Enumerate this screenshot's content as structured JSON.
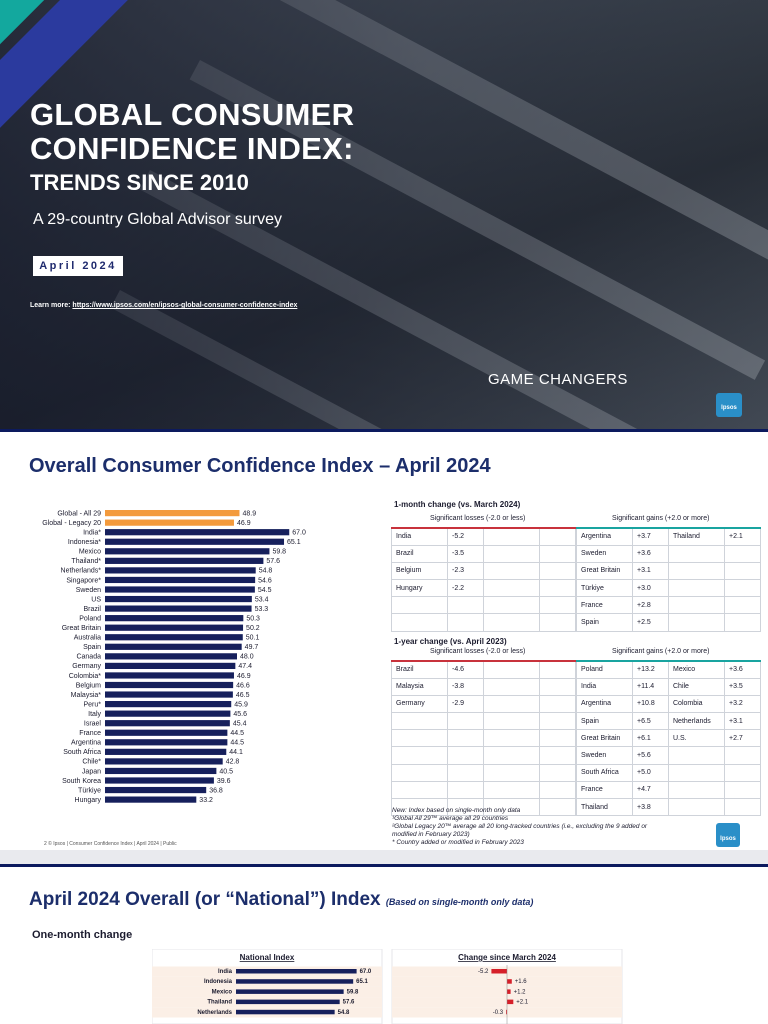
{
  "cover": {
    "title_line1": "GLOBAL CONSUMER",
    "title_line2": "CONFIDENCE INDEX:",
    "title_line3": "TRENDS SINCE 2010",
    "subtitle": "A 29-country Global Advisor survey",
    "date": "April 2024",
    "learn_more_label": "Learn more:",
    "learn_more_url": "https://www.ipsos.com/en/ipsos-global-consumer-confidence-index",
    "tagline": "GAME CHANGERS",
    "logo": "Ipsos"
  },
  "slide2": {
    "heading": "Overall Consumer Confidence Index – April 2024",
    "one_month": {
      "title": "1-month change (vs. March 2024)",
      "loss_header": "Significant losses (-2.0 or less)",
      "gain_header": "Significant gains (+2.0 or more)",
      "losses": [
        [
          "India",
          "-5.2"
        ],
        [
          "Brazil",
          "-3.5"
        ],
        [
          "Belgium",
          "-2.3"
        ],
        [
          "Hungary",
          "-2.2"
        ]
      ],
      "gains_col1": [
        [
          "Argentina",
          "+3.7"
        ],
        [
          "Sweden",
          "+3.6"
        ],
        [
          "Great Britain",
          "+3.1"
        ],
        [
          "Türkiye",
          "+3.0"
        ],
        [
          "France",
          "+2.8"
        ],
        [
          "Spain",
          "+2.5"
        ]
      ],
      "gains_col2": [
        [
          "Thailand",
          "+2.1"
        ]
      ]
    },
    "one_year": {
      "title": "1-year change (vs. April 2023)",
      "loss_header": "Significant losses (-2.0 or less)",
      "gain_header": "Significant gains (+2.0 or more)",
      "losses": [
        [
          "Brazil",
          "-4.6"
        ],
        [
          "Malaysia",
          "-3.8"
        ],
        [
          "Germany",
          "-2.9"
        ]
      ],
      "gains_col1": [
        [
          "Poland",
          "+13.2"
        ],
        [
          "India",
          "+11.4"
        ],
        [
          "Argentina",
          "+10.8"
        ],
        [
          "Spain",
          "+6.5"
        ],
        [
          "Great Britain",
          "+6.1"
        ],
        [
          "Sweden",
          "+5.6"
        ],
        [
          "South Africa",
          "+5.0"
        ],
        [
          "France",
          "+4.7"
        ],
        [
          "Thailand",
          "+3.8"
        ]
      ],
      "gains_col2": [
        [
          "Mexico",
          "+3.6"
        ],
        [
          "Chile",
          "+3.5"
        ],
        [
          "Colombia",
          "+3.2"
        ],
        [
          "Netherlands",
          "+3.1"
        ],
        [
          "U.S.",
          "+2.7"
        ]
      ]
    },
    "notes": [
      "New: Index based on single-month only data",
      "¹Global All 29™ average all 29 countries",
      "²Global Legacy 20™ average all 20 long-tracked countries (i.e., excluding the 9 added or",
      "modified in February 2023)",
      "* Country added or modified in February 2023"
    ],
    "footer": "2   © Ipsos | Consumer Confidence Index | April 2024 | Public",
    "logo": "Ipsos"
  },
  "chart_data": [
    {
      "type": "bar",
      "orientation": "horizontal",
      "categories": [
        "Global - All 29",
        "Global - Legacy 20",
        "India*",
        "Indonesia*",
        "Mexico",
        "Thailand*",
        "Netherlands*",
        "Singapore*",
        "Sweden",
        "US",
        "Brazil",
        "Poland",
        "Great Britain",
        "Australia",
        "Spain",
        "Canada",
        "Germany",
        "Colombia*",
        "Belgium",
        "Malaysia*",
        "Peru*",
        "Italy",
        "Israel",
        "France",
        "Argentina",
        "South Africa",
        "Chile*",
        "Japan",
        "South Korea",
        "Türkiye",
        "Hungary"
      ],
      "values": [
        48.9,
        46.9,
        67.0,
        65.1,
        59.8,
        57.6,
        54.8,
        54.6,
        54.5,
        53.4,
        53.3,
        50.3,
        50.2,
        50.1,
        49.7,
        48.0,
        47.4,
        46.9,
        46.6,
        46.5,
        45.9,
        45.6,
        45.4,
        44.5,
        44.5,
        44.1,
        42.8,
        40.5,
        39.6,
        36.8,
        33.2
      ],
      "data_labels": [
        "48.9",
        "46.9",
        "67.0",
        "65.1",
        "59.8",
        "57.6",
        "54.8",
        "54.6",
        "54.5",
        "53.4",
        "53.3",
        "50.3",
        "50.2",
        "50.1",
        "49.7",
        "48.0",
        "47.4",
        "46.9",
        "46.6",
        "46.5",
        "45.9",
        "45.6",
        "45.4",
        "44.5",
        "44.5",
        "44.1",
        "42.8",
        "40.5",
        "39.6",
        "36.8",
        "33.2"
      ],
      "colors": {
        "global": "#f39a3c",
        "country": "#16205c"
      }
    },
    {
      "type": "bar",
      "orientation": "horizontal",
      "title": "National Index",
      "categories": [
        "India",
        "Indonesia",
        "Mexico",
        "Thailand",
        "Netherlands"
      ],
      "values": [
        67.0,
        65.1,
        59.8,
        57.6,
        54.8
      ],
      "data_labels": [
        "67.0",
        "65.1",
        "59.8",
        "57.6",
        "54.8"
      ]
    },
    {
      "type": "bar",
      "orientation": "horizontal",
      "title": "Change since March 2024",
      "categories": [
        "India",
        "Indonesia",
        "Mexico",
        "Thailand",
        "Netherlands"
      ],
      "values": [
        -5.2,
        1.6,
        1.2,
        2.1,
        -0.3
      ],
      "data_labels": [
        "-5.2",
        "+1.6",
        "+1.2",
        "+2.1",
        "-0.3"
      ],
      "colors": {
        "negative": "#d6202a",
        "positive": "#d6202a"
      }
    }
  ],
  "slide3": {
    "heading": "April 2024 Overall (or “National”) Index",
    "heading_note": "(Based on single-month only data)",
    "subheading": "One-month change"
  }
}
